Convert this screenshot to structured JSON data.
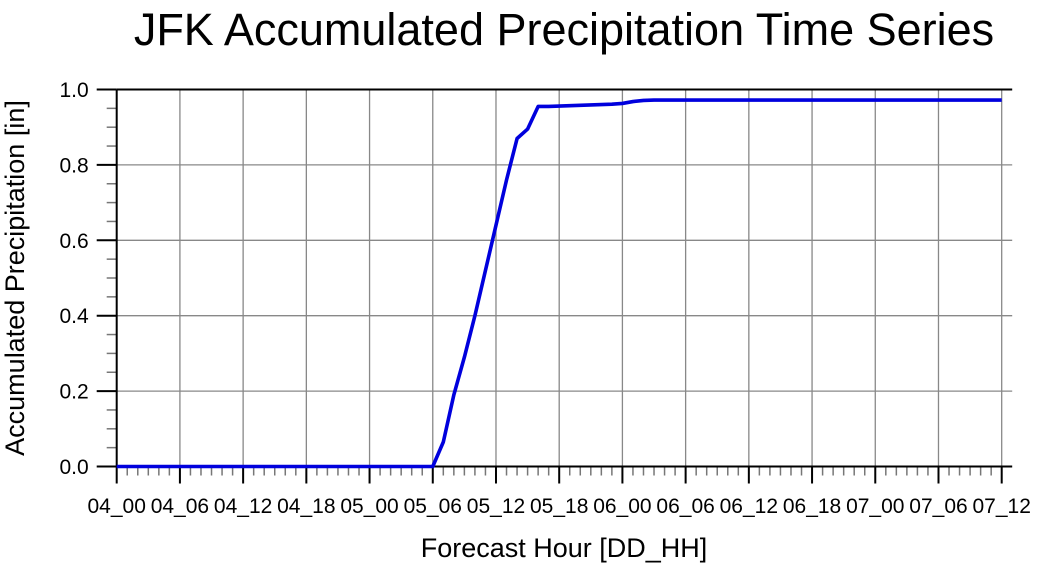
{
  "chart_data": {
    "type": "line",
    "title": "JFK Accumulated Precipitation Time Series",
    "xlabel": "Forecast Hour [DD_HH]",
    "ylabel": "Accumulated Precipitation [in]",
    "x_tick_labels": [
      "04_00",
      "04_06",
      "04_12",
      "04_18",
      "05_00",
      "05_06",
      "05_12",
      "05_18",
      "06_00",
      "06_06",
      "06_12",
      "06_18",
      "07_00",
      "07_06",
      "07_12"
    ],
    "x_major_tick_interval_hours": 6,
    "x_minor_tick_interval_hours": 1,
    "x_range_hours": [
      0,
      85
    ],
    "y_tick_labels": [
      "0.0",
      "0.2",
      "0.4",
      "0.6",
      "0.8",
      "1.0"
    ],
    "y_ticks": [
      0.0,
      0.2,
      0.4,
      0.6,
      0.8,
      1.0
    ],
    "y_minor_tick_interval": 0.05,
    "ylim": [
      0.0,
      1.0
    ],
    "grid": true,
    "legend": false,
    "series": [
      {
        "start_label": "04_00",
        "end_label": "07_12",
        "interval_hours": 1,
        "values": [
          0,
          0,
          0,
          0,
          0,
          0,
          0,
          0,
          0,
          0,
          0,
          0,
          0,
          0,
          0,
          0,
          0,
          0,
          0,
          0,
          0,
          0,
          0,
          0,
          0,
          0,
          0,
          0,
          0,
          0,
          0,
          0.065,
          0.19,
          0.29,
          0.4,
          0.52,
          0.64,
          0.76,
          0.87,
          0.895,
          0.955,
          0.955,
          0.956,
          0.957,
          0.958,
          0.959,
          0.96,
          0.961,
          0.963,
          0.968,
          0.971,
          0.972,
          0.972,
          0.972,
          0.972,
          0.972,
          0.972,
          0.972,
          0.972,
          0.972,
          0.972,
          0.972,
          0.972,
          0.972,
          0.972,
          0.972,
          0.972,
          0.972,
          0.972,
          0.972,
          0.972,
          0.972,
          0.972,
          0.972,
          0.972,
          0.972,
          0.972,
          0.972,
          0.972,
          0.972,
          0.972,
          0.972,
          0.972,
          0.972,
          0.972
        ]
      }
    ],
    "colors": {
      "line": "#0000dd",
      "grid": "#888888",
      "axis": "#000000",
      "minor_tick": "#777777",
      "background": "#ffffff"
    }
  }
}
